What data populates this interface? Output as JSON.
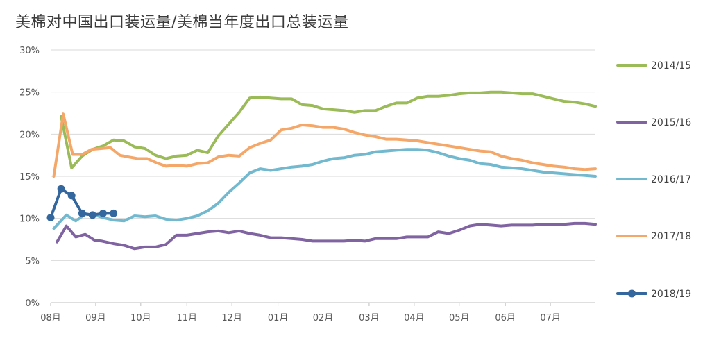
{
  "chart_data": {
    "type": "line",
    "title": "美棉对中国出口装运量/美棉当年度出口总装运量",
    "xlabel": "",
    "ylabel": "",
    "ylim": [
      0,
      30
    ],
    "yticks": [
      "0%",
      "5%",
      "10%",
      "15%",
      "20%",
      "25%",
      "30%"
    ],
    "xlim": [
      0,
      52
    ],
    "x_tick_labels": [
      {
        "x": 0,
        "label": "08月"
      },
      {
        "x": 4.3,
        "label": "09月"
      },
      {
        "x": 8.6,
        "label": "10月"
      },
      {
        "x": 13,
        "label": "11月"
      },
      {
        "x": 17.3,
        "label": "12月"
      },
      {
        "x": 21.7,
        "label": "01月"
      },
      {
        "x": 26,
        "label": "02月"
      },
      {
        "x": 30.4,
        "label": "03月"
      },
      {
        "x": 34.7,
        "label": "04月"
      },
      {
        "x": 39,
        "label": "05月"
      },
      {
        "x": 43.4,
        "label": "06月"
      },
      {
        "x": 47.7,
        "label": "07月"
      }
    ],
    "grid": true,
    "legend_position": "right",
    "series": [
      {
        "name": "2014/15",
        "color": "#9bbb59",
        "markers": false,
        "x": [
          1,
          2,
          3,
          4,
          5,
          6,
          7,
          8,
          9,
          10,
          11,
          12,
          13,
          14,
          15,
          16,
          17,
          18,
          19,
          20,
          21,
          22,
          23,
          24,
          25,
          26,
          27,
          28,
          29,
          30,
          31,
          32,
          33,
          34,
          35,
          36,
          37,
          38,
          39,
          40,
          41,
          42,
          43,
          44,
          45,
          46,
          47,
          48,
          49,
          50,
          51,
          52
        ],
        "values": [
          22.1,
          16.0,
          17.4,
          18.2,
          18.6,
          19.3,
          19.2,
          18.5,
          18.3,
          17.5,
          17.1,
          17.4,
          17.5,
          18.1,
          17.8,
          19.8,
          21.2,
          22.6,
          24.3,
          24.4,
          24.3,
          24.2,
          24.2,
          23.5,
          23.4,
          23.0,
          22.9,
          22.8,
          22.6,
          22.8,
          22.8,
          23.3,
          23.7,
          23.7,
          24.3,
          24.5,
          24.5,
          24.6,
          24.8,
          24.9,
          24.9,
          25.0,
          25.0,
          24.9,
          24.8,
          24.8,
          24.5,
          24.2,
          23.9,
          23.8,
          23.6,
          23.3
        ]
      },
      {
        "name": "2015/16",
        "color": "#8064a2",
        "markers": false,
        "x": [
          0.6,
          1.5,
          2.4,
          3.3,
          4.2,
          4.9,
          6,
          7,
          8,
          9,
          10,
          11,
          12,
          13,
          14,
          15,
          16,
          17,
          18,
          19,
          20,
          21,
          22,
          23,
          24,
          25,
          26,
          27,
          28,
          29,
          30,
          31,
          32,
          33,
          34,
          35,
          36,
          37,
          38,
          39,
          40,
          41,
          42,
          43,
          44,
          45,
          46,
          47,
          48,
          49,
          50,
          51,
          52
        ],
        "values": [
          7.2,
          9.1,
          7.8,
          8.1,
          7.4,
          7.3,
          7.0,
          6.8,
          6.4,
          6.6,
          6.6,
          6.9,
          8.0,
          8.0,
          8.2,
          8.4,
          8.5,
          8.3,
          8.5,
          8.2,
          8.0,
          7.7,
          7.7,
          7.6,
          7.5,
          7.3,
          7.3,
          7.3,
          7.3,
          7.4,
          7.3,
          7.6,
          7.6,
          7.6,
          7.8,
          7.8,
          7.8,
          8.4,
          8.2,
          8.6,
          9.1,
          9.3,
          9.2,
          9.1,
          9.2,
          9.2,
          9.2,
          9.3,
          9.3,
          9.3,
          9.4,
          9.4,
          9.3
        ]
      },
      {
        "name": "2016/17",
        "color": "#72b9cf",
        "markers": false,
        "x": [
          0.3,
          1.5,
          2.4,
          3.3,
          4.2,
          5,
          6,
          7,
          8,
          9,
          10,
          11,
          12,
          13,
          14,
          15,
          16,
          17,
          18,
          19,
          20,
          21,
          22,
          23,
          24,
          25,
          26,
          27,
          28,
          29,
          30,
          31,
          32,
          33,
          34,
          35,
          36,
          37,
          38,
          39,
          40,
          41,
          42,
          43,
          44,
          45,
          46,
          47,
          48,
          49,
          50,
          51,
          52
        ],
        "values": [
          8.8,
          10.4,
          9.7,
          10.5,
          10.4,
          10.1,
          9.8,
          9.7,
          10.3,
          10.2,
          10.3,
          9.9,
          9.8,
          10.0,
          10.3,
          10.9,
          11.8,
          13.1,
          14.2,
          15.4,
          15.9,
          15.7,
          15.9,
          16.1,
          16.2,
          16.4,
          16.8,
          17.1,
          17.2,
          17.5,
          17.6,
          17.9,
          18.0,
          18.1,
          18.2,
          18.2,
          18.1,
          17.8,
          17.4,
          17.1,
          16.9,
          16.5,
          16.4,
          16.1,
          16.0,
          15.9,
          15.7,
          15.5,
          15.4,
          15.3,
          15.2,
          15.1,
          15.0
        ]
      },
      {
        "name": "2017/18",
        "color": "#f4a768",
        "markers": false,
        "x": [
          0.3,
          1.2,
          2.1,
          3.0,
          3.9,
          4.8,
          5.7,
          6.6,
          7.4,
          8.3,
          9.2,
          10.1,
          11,
          12,
          13,
          14,
          15,
          16,
          17,
          18,
          19,
          20,
          21,
          22,
          23,
          24,
          25,
          26,
          27,
          28,
          29,
          30,
          31,
          32,
          33,
          34,
          35,
          36,
          37,
          38,
          39,
          40,
          41,
          42,
          43,
          44,
          45,
          46,
          47,
          48,
          49,
          50,
          51,
          52
        ],
        "values": [
          15.0,
          22.4,
          17.6,
          17.6,
          18.2,
          18.3,
          18.4,
          17.5,
          17.3,
          17.1,
          17.1,
          16.6,
          16.2,
          16.3,
          16.2,
          16.5,
          16.6,
          17.3,
          17.5,
          17.4,
          18.4,
          18.9,
          19.3,
          20.5,
          20.7,
          21.1,
          21.0,
          20.8,
          20.8,
          20.6,
          20.2,
          19.9,
          19.7,
          19.4,
          19.4,
          19.3,
          19.2,
          19.0,
          18.8,
          18.6,
          18.4,
          18.2,
          18.0,
          17.9,
          17.4,
          17.1,
          16.9,
          16.6,
          16.4,
          16.2,
          16.1,
          15.9,
          15.8,
          15.9
        ]
      },
      {
        "name": "2018/19",
        "color": "#34679d",
        "markers": true,
        "x": [
          0,
          1,
          2,
          3,
          4,
          5,
          6
        ],
        "values": [
          10.1,
          13.5,
          12.7,
          10.6,
          10.4,
          10.6,
          10.6
        ]
      }
    ]
  }
}
